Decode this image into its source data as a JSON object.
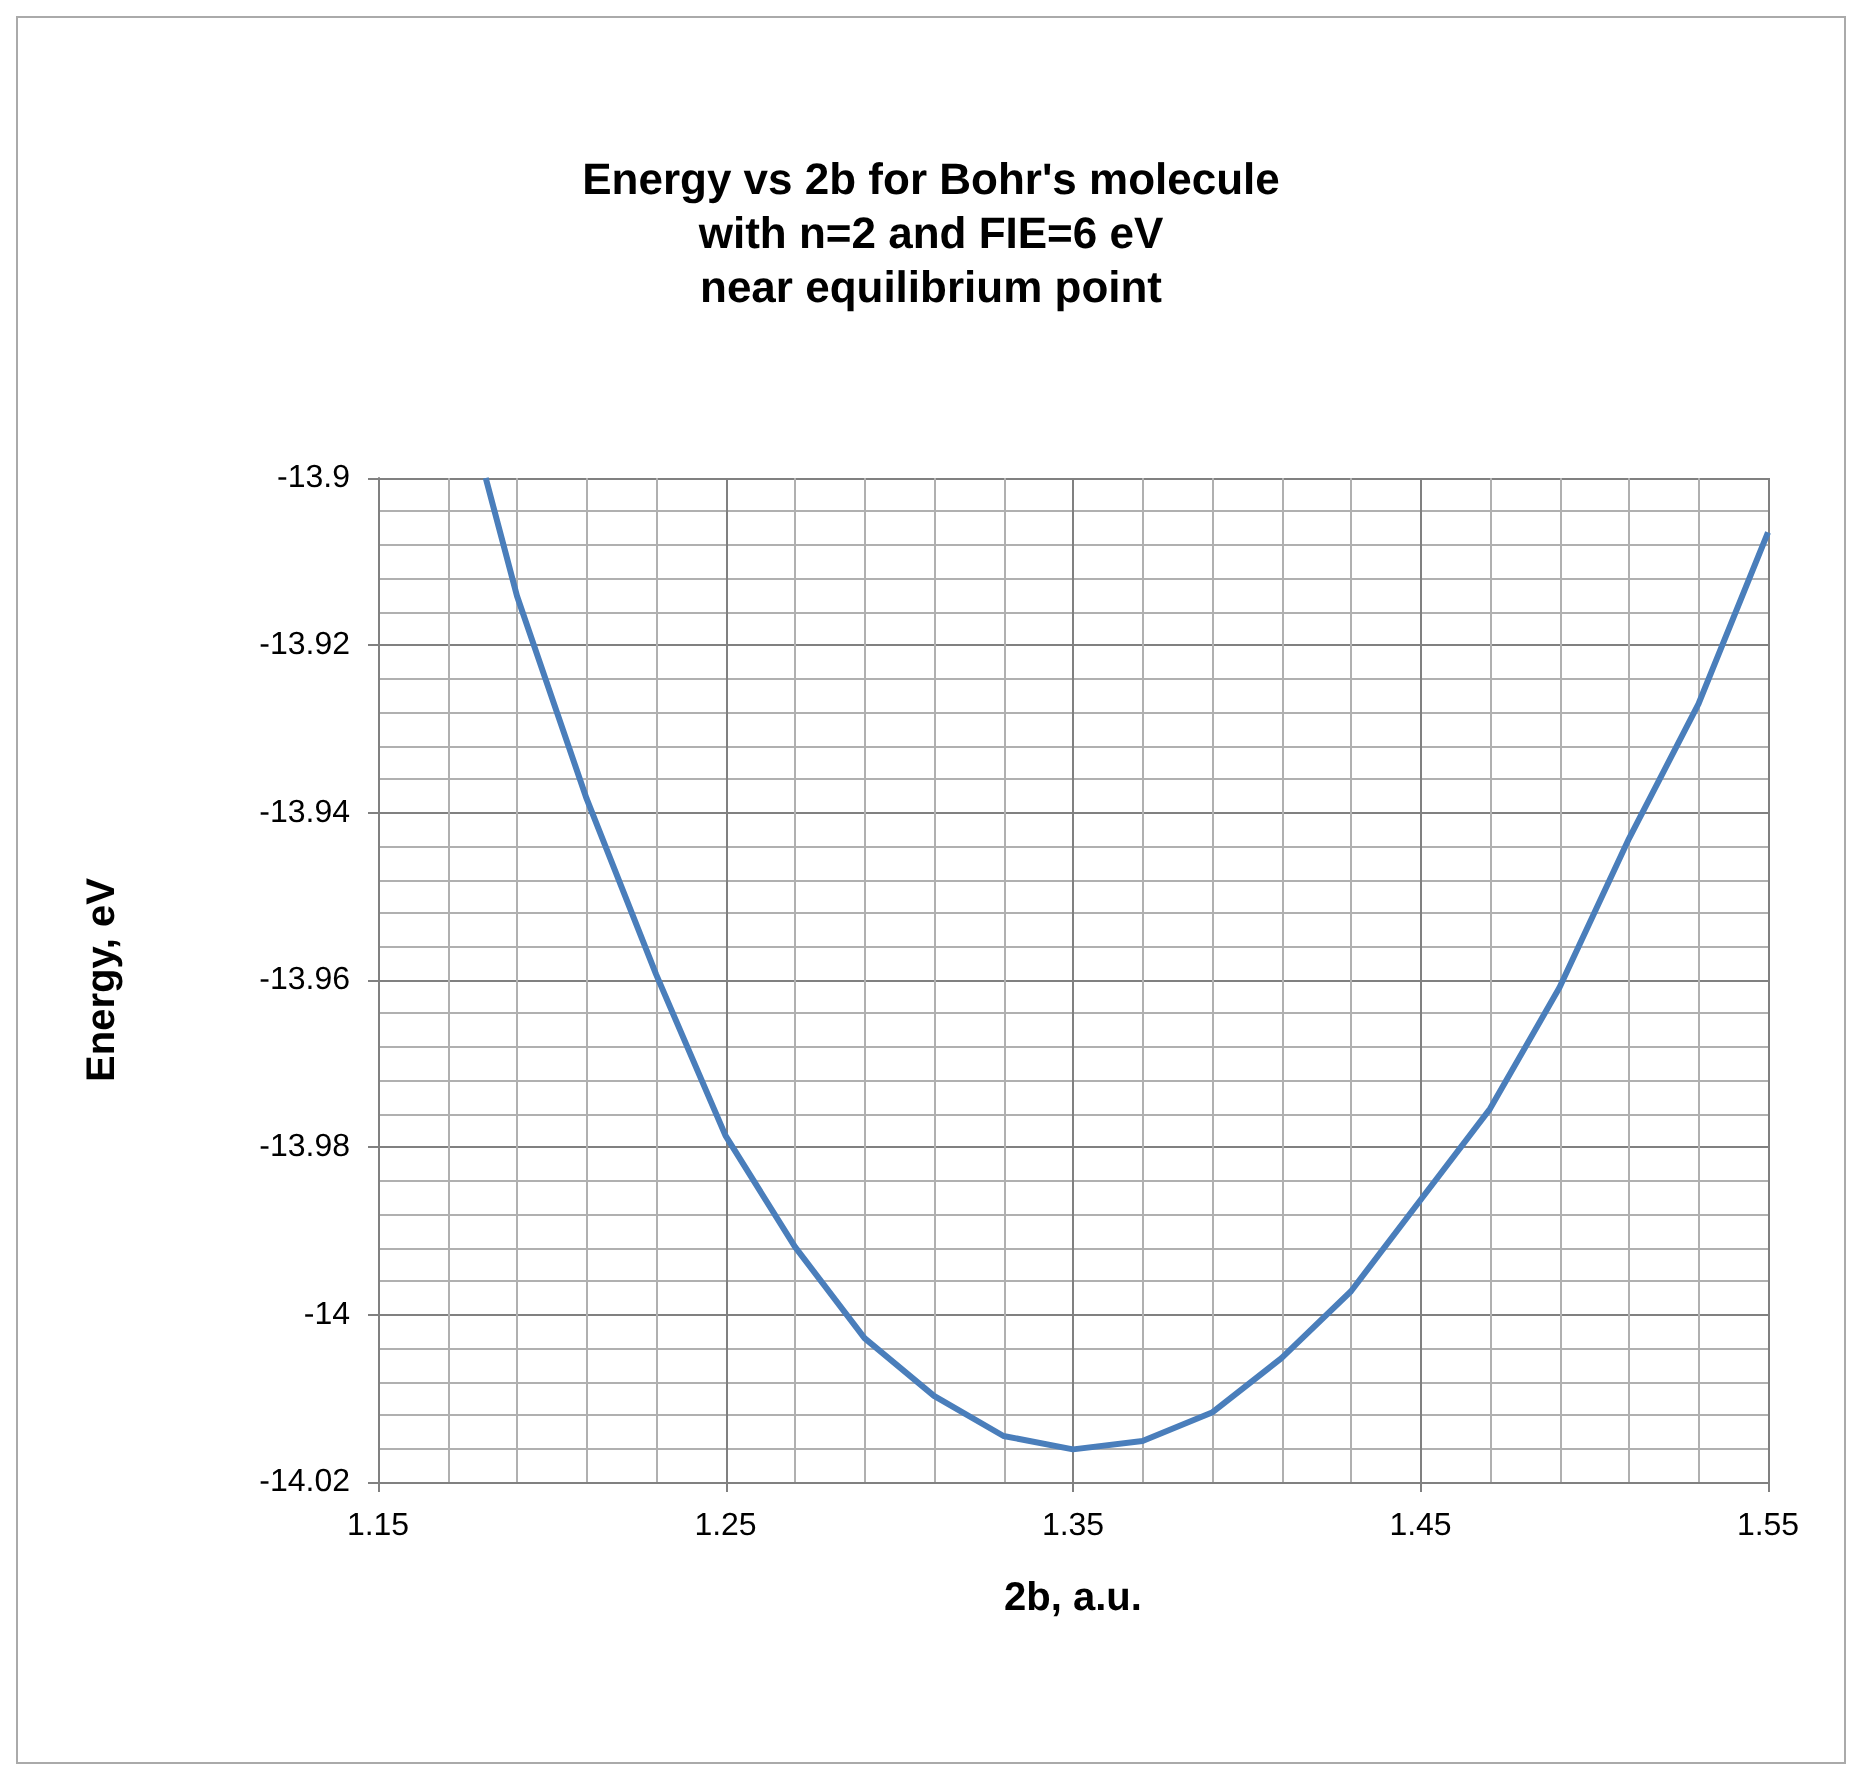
{
  "chart_data": {
    "type": "line",
    "title": "Energy vs 2b for Bohr's molecule\nwith n=2 and FIE=6 eV\nnear equilibrium point",
    "xlabel": "2b, a.u.",
    "ylabel": "Energy, eV",
    "x": [
      1.181,
      1.19,
      1.21,
      1.23,
      1.25,
      1.27,
      1.29,
      1.31,
      1.33,
      1.35,
      1.37,
      1.39,
      1.41,
      1.43,
      1.45,
      1.47,
      1.49,
      1.51,
      1.53,
      1.55
    ],
    "series": [
      {
        "color": "#4a7ebb",
        "values": [
          -13.9,
          -13.9141,
          -13.9383,
          -13.9593,
          -13.9786,
          -13.9919,
          -14.0028,
          -14.0097,
          -14.0145,
          -14.0161,
          -14.0151,
          -14.0117,
          -14.0052,
          -13.9972,
          -13.9863,
          -13.9754,
          -13.9609,
          -13.9431,
          -13.927,
          -13.9065
        ]
      }
    ],
    "xlim": [
      1.15,
      1.55
    ],
    "xticks": [
      1.15,
      1.25,
      1.35,
      1.45,
      1.55
    ],
    "ylim": [
      -14.02,
      -13.9
    ],
    "yticks": [
      -14.02,
      -14,
      -13.98,
      -13.96,
      -13.94,
      -13.92,
      -13.9
    ],
    "grid": true,
    "marker": "none",
    "line_style": "solid"
  }
}
